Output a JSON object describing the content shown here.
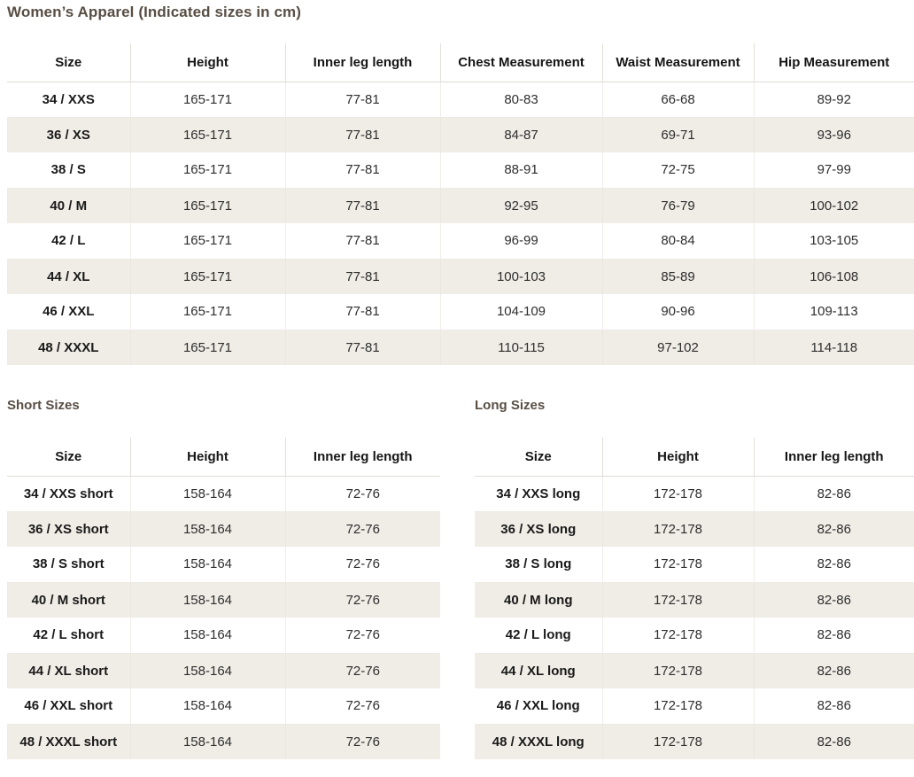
{
  "page": {
    "title": "Women’s Apparel (Indicated sizes in cm)",
    "heading_color": "#584e44",
    "stripe_color": "#f0ece6"
  },
  "main_table": {
    "columns": [
      "Size",
      "Height",
      "Inner leg length",
      "Chest Measurement",
      "Waist Measurement",
      "Hip Measurement"
    ],
    "rows": [
      [
        "34 / XXS",
        "165-171",
        "77-81",
        "80-83",
        "66-68",
        "89-92"
      ],
      [
        "36 / XS",
        "165-171",
        "77-81",
        "84-87",
        "69-71",
        "93-96"
      ],
      [
        "38 / S",
        "165-171",
        "77-81",
        "88-91",
        "72-75",
        "97-99"
      ],
      [
        "40 / M",
        "165-171",
        "77-81",
        "92-95",
        "76-79",
        "100-102"
      ],
      [
        "42 / L",
        "165-171",
        "77-81",
        "96-99",
        "80-84",
        "103-105"
      ],
      [
        "44 / XL",
        "165-171",
        "77-81",
        "100-103",
        "85-89",
        "106-108"
      ],
      [
        "46 / XXL",
        "165-171",
        "77-81",
        "104-109",
        "90-96",
        "109-113"
      ],
      [
        "48 / XXXL",
        "165-171",
        "77-81",
        "110-115",
        "97-102",
        "114-118"
      ]
    ]
  },
  "short_table": {
    "heading": "Short Sizes",
    "columns": [
      "Size",
      "Height",
      "Inner leg length"
    ],
    "rows": [
      [
        "34 / XXS short",
        "158-164",
        "72-76"
      ],
      [
        "36 / XS short",
        "158-164",
        "72-76"
      ],
      [
        "38 / S short",
        "158-164",
        "72-76"
      ],
      [
        "40 / M short",
        "158-164",
        "72-76"
      ],
      [
        "42 / L short",
        "158-164",
        "72-76"
      ],
      [
        "44 / XL short",
        "158-164",
        "72-76"
      ],
      [
        "46 / XXL short",
        "158-164",
        "72-76"
      ],
      [
        "48 / XXXL short",
        "158-164",
        "72-76"
      ]
    ]
  },
  "long_table": {
    "heading": "Long Sizes",
    "columns": [
      "Size",
      "Height",
      "Inner leg length"
    ],
    "rows": [
      [
        "34 / XXS long",
        "172-178",
        "82-86"
      ],
      [
        "36 / XS long",
        "172-178",
        "82-86"
      ],
      [
        "38 / S long",
        "172-178",
        "82-86"
      ],
      [
        "40 / M long",
        "172-178",
        "82-86"
      ],
      [
        "42 / L long",
        "172-178",
        "82-86"
      ],
      [
        "44 / XL long",
        "172-178",
        "82-86"
      ],
      [
        "46 / XXL long",
        "172-178",
        "82-86"
      ],
      [
        "48 / XXXL long",
        "172-178",
        "82-86"
      ]
    ]
  }
}
